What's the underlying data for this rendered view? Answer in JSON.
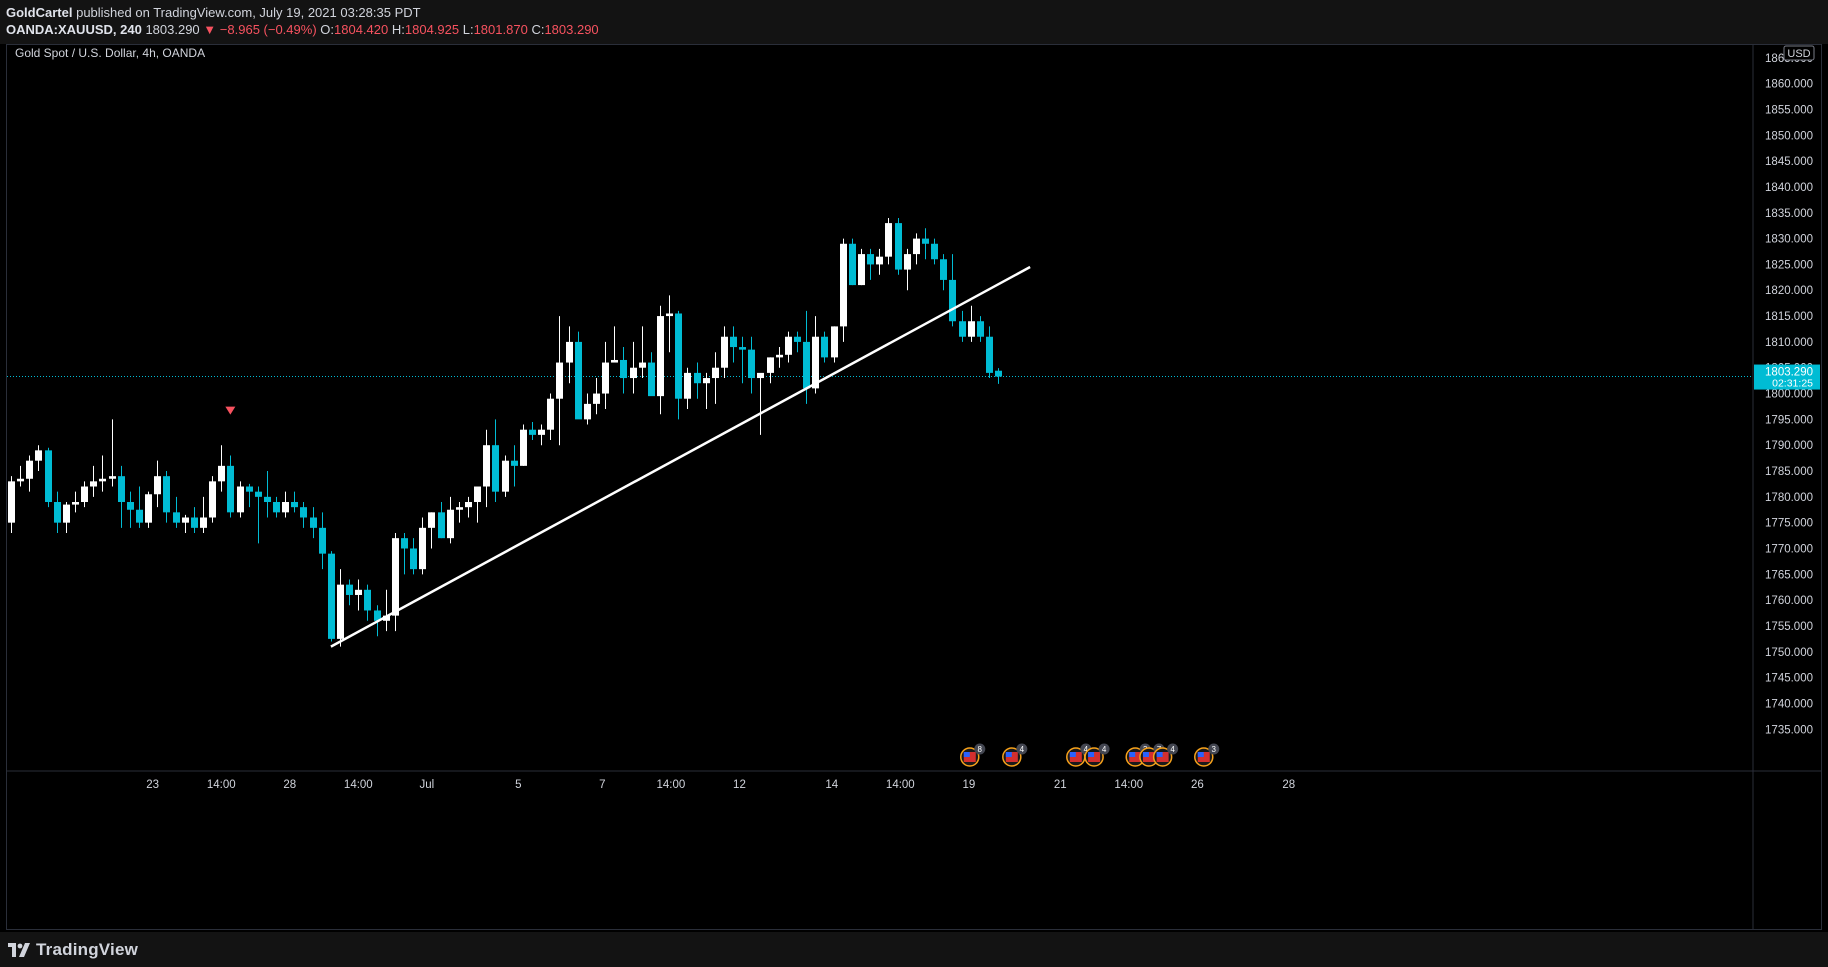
{
  "header": {
    "author": "GoldCartel",
    "published_text": "published on TradingView.com, July 19, 2021 03:28:35 PDT",
    "symbol": "OANDA:XAUUSD, 240",
    "last": "1803.290",
    "change": "−8.965 (−0.49%)",
    "o_label": "O:",
    "o_val": "1804.420",
    "h_label": "H:",
    "h_val": "1804.925",
    "l_label": "L:",
    "l_val": "1801.870",
    "c_label": "C:",
    "c_val": "1803.290"
  },
  "footer": {
    "logo_text": "TradingView"
  },
  "colors": {
    "up": "#ffffff",
    "down": "#00bcd4",
    "price_line": "#00bcd4",
    "text": "#d1d4dc",
    "grid_border": "#2a2e39",
    "marker": "#f7525f"
  },
  "chart_data": {
    "type": "candlestick",
    "title": "Gold Spot / U.S. Dollar, 4h, OANDA",
    "currency": "USD",
    "y_ticks": [
      1735,
      1740,
      1745,
      1750,
      1755,
      1760,
      1765,
      1770,
      1775,
      1780,
      1785,
      1790,
      1795,
      1800,
      1805,
      1810,
      1815,
      1820,
      1825,
      1830,
      1835,
      1840,
      1845,
      1850,
      1855,
      1860,
      1865
    ],
    "y_tick_labels": [
      "1735.000",
      "1740.000",
      "1745.000",
      "1750.000",
      "1755.000",
      "1760.000",
      "1765.000",
      "1770.000",
      "1775.000",
      "1780.000",
      "1785.000",
      "1790.000",
      "1795.000",
      "1800.000",
      "1805.000",
      "1810.000",
      "1815.000",
      "1820.000",
      "1825.000",
      "1830.000",
      "1835.000",
      "1840.000",
      "1845.000",
      "1850.000",
      "1855.000",
      "1860.000",
      "1865.000"
    ],
    "ylim": [
      1730.5,
      1867
    ],
    "x_ticks": [
      {
        "i": 15.5,
        "label": "23"
      },
      {
        "i": 23,
        "label": "14:00"
      },
      {
        "i": 30.5,
        "label": "28"
      },
      {
        "i": 38,
        "label": "14:00"
      },
      {
        "i": 45.5,
        "label": "Jul"
      },
      {
        "i": 55.5,
        "label": "5"
      },
      {
        "i": 64.7,
        "label": "7"
      },
      {
        "i": 72.2,
        "label": "14:00"
      },
      {
        "i": 79.7,
        "label": "12"
      },
      {
        "i": 89.8,
        "label": "14"
      },
      {
        "i": 97.3,
        "label": "14:00"
      },
      {
        "i": 104.8,
        "label": "19"
      },
      {
        "i": 114.8,
        "label": "21"
      },
      {
        "i": 122.3,
        "label": "14:00"
      },
      {
        "i": 129.8,
        "label": "26"
      },
      {
        "i": 139.8,
        "label": "28"
      }
    ],
    "candles": [
      [
        1775,
        1784,
        1773,
        1783
      ],
      [
        1783,
        1786,
        1782,
        1783.5
      ],
      [
        1783.5,
        1788,
        1781,
        1787
      ],
      [
        1787,
        1790,
        1785,
        1789
      ],
      [
        1789,
        1789.5,
        1778,
        1779
      ],
      [
        1779,
        1781,
        1773,
        1775
      ],
      [
        1775,
        1779,
        1773,
        1778.5
      ],
      [
        1778.5,
        1781,
        1777,
        1779
      ],
      [
        1779,
        1783,
        1778,
        1782
      ],
      [
        1782,
        1786,
        1780,
        1783
      ],
      [
        1783,
        1788,
        1781,
        1783.5
      ],
      [
        1783.5,
        1795,
        1782,
        1784
      ],
      [
        1784,
        1786,
        1774,
        1779
      ],
      [
        1779,
        1781,
        1774,
        1777.5
      ],
      [
        1777.5,
        1782,
        1774,
        1775
      ],
      [
        1775,
        1781,
        1774,
        1780.5
      ],
      [
        1780.5,
        1787,
        1778,
        1784
      ],
      [
        1784,
        1785,
        1775,
        1777
      ],
      [
        1777,
        1780,
        1774,
        1775
      ],
      [
        1775,
        1776.5,
        1773,
        1776
      ],
      [
        1776,
        1778,
        1773,
        1774
      ],
      [
        1774,
        1780,
        1773,
        1776
      ],
      [
        1776,
        1784,
        1775,
        1783
      ],
      [
        1783,
        1790,
        1781,
        1786
      ],
      [
        1786,
        1788,
        1776,
        1777
      ],
      [
        1777,
        1783,
        1776,
        1782
      ],
      [
        1782,
        1782.5,
        1778,
        1781
      ],
      [
        1781,
        1782,
        1771,
        1780
      ],
      [
        1780,
        1785,
        1776,
        1779
      ],
      [
        1779,
        1780,
        1776,
        1777
      ],
      [
        1777,
        1781,
        1776,
        1779
      ],
      [
        1779,
        1781,
        1777,
        1778
      ],
      [
        1778,
        1779,
        1774,
        1776
      ],
      [
        1776,
        1778,
        1772,
        1774
      ],
      [
        1774,
        1777,
        1766,
        1769
      ],
      [
        1769,
        1769.5,
        1752,
        1752.5
      ],
      [
        1752.5,
        1766,
        1751,
        1763
      ],
      [
        1763,
        1764,
        1759,
        1761
      ],
      [
        1761,
        1764,
        1758,
        1762
      ],
      [
        1762,
        1763,
        1756,
        1758
      ],
      [
        1758,
        1759,
        1753,
        1756
      ],
      [
        1756,
        1762,
        1754,
        1757
      ],
      [
        1757,
        1773,
        1754,
        1772
      ],
      [
        1772,
        1773,
        1765,
        1770
      ],
      [
        1770,
        1772,
        1765,
        1766
      ],
      [
        1766,
        1776,
        1765,
        1774
      ],
      [
        1774,
        1777,
        1770,
        1777
      ],
      [
        1777,
        1779,
        1772,
        1772
      ],
      [
        1772,
        1780,
        1771,
        1777.5
      ],
      [
        1777.5,
        1779,
        1775,
        1778
      ],
      [
        1778,
        1780,
        1776,
        1779
      ],
      [
        1779,
        1781,
        1775,
        1782
      ],
      [
        1782,
        1793,
        1778,
        1790
      ],
      [
        1790,
        1795,
        1779,
        1781
      ],
      [
        1781,
        1788,
        1780,
        1787
      ],
      [
        1787,
        1790,
        1782,
        1786
      ],
      [
        1786,
        1794,
        1786,
        1793
      ],
      [
        1793,
        1794.5,
        1791,
        1792
      ],
      [
        1792,
        1794,
        1790,
        1793
      ],
      [
        1793,
        1800,
        1791,
        1799
      ],
      [
        1799,
        1815,
        1790,
        1806
      ],
      [
        1806,
        1813,
        1802,
        1810
      ],
      [
        1810,
        1812,
        1796,
        1795
      ],
      [
        1795,
        1800,
        1794,
        1798
      ],
      [
        1798,
        1803,
        1796,
        1800
      ],
      [
        1800,
        1810,
        1797,
        1806
      ],
      [
        1806,
        1813,
        1806,
        1806.5
      ],
      [
        1806.5,
        1809,
        1800,
        1803
      ],
      [
        1803,
        1810,
        1800,
        1805
      ],
      [
        1805,
        1813,
        1803,
        1806
      ],
      [
        1806,
        1808,
        1800,
        1799.5
      ],
      [
        1799.5,
        1817,
        1796,
        1815
      ],
      [
        1815,
        1819,
        1808,
        1815.5
      ],
      [
        1815.5,
        1816,
        1795,
        1799
      ],
      [
        1799,
        1805,
        1797,
        1804
      ],
      [
        1804,
        1806,
        1799,
        1802
      ],
      [
        1802,
        1804,
        1797,
        1803
      ],
      [
        1803,
        1808,
        1798,
        1805
      ],
      [
        1805,
        1813,
        1803,
        1811
      ],
      [
        1811,
        1813,
        1806,
        1809
      ],
      [
        1809,
        1811,
        1802,
        1808.5
      ],
      [
        1808.5,
        1811,
        1800,
        1803
      ],
      [
        1803,
        1803.5,
        1792,
        1804
      ],
      [
        1804,
        1807,
        1802,
        1807
      ],
      [
        1807,
        1809,
        1805,
        1807.5
      ],
      [
        1807.5,
        1812,
        1806,
        1811
      ],
      [
        1811,
        1812,
        1808,
        1810
      ],
      [
        1810,
        1816,
        1798,
        1801
      ],
      [
        1801,
        1815,
        1800,
        1811
      ],
      [
        1811,
        1812,
        1806,
        1807
      ],
      [
        1807,
        1813,
        1806,
        1813
      ],
      [
        1813,
        1830,
        1810,
        1829
      ],
      [
        1829,
        1830,
        1821,
        1821
      ],
      [
        1821,
        1828,
        1821,
        1827
      ],
      [
        1827,
        1828,
        1822,
        1825
      ],
      [
        1825,
        1828,
        1823,
        1826.5
      ],
      [
        1826.5,
        1834,
        1825,
        1833
      ],
      [
        1833,
        1834,
        1823,
        1824
      ],
      [
        1824,
        1828,
        1820,
        1827
      ],
      [
        1827,
        1831,
        1825,
        1830
      ],
      [
        1830,
        1832,
        1826,
        1829
      ],
      [
        1829,
        1830,
        1825,
        1826
      ],
      [
        1826,
        1827,
        1820,
        1822
      ],
      [
        1822,
        1827,
        1813,
        1814
      ],
      [
        1814,
        1816,
        1810,
        1811
      ],
      [
        1811,
        1817,
        1810,
        1814
      ],
      [
        1814,
        1815,
        1810,
        1811
      ],
      [
        1811,
        1813,
        1803,
        1804
      ],
      [
        1804.42,
        1804.925,
        1801.87,
        1803.29
      ]
    ],
    "current_price": 1803.29,
    "price_label": "1803.290",
    "countdown": "02:31:25",
    "trendline": [
      {
        "i": 35,
        "price": 1751
      },
      {
        "i": 111.5,
        "price": 1824.5
      }
    ],
    "marker": {
      "i": 24,
      "price": 1796.5
    },
    "events": [
      {
        "i": 104.9,
        "count": "8"
      },
      {
        "i": 109.5,
        "count": "4"
      },
      {
        "i": 116.5,
        "count": "4"
      },
      {
        "i": 118.5,
        "count": "4"
      },
      {
        "i": 123,
        "count": "3"
      },
      {
        "i": 124.5,
        "count": "7"
      },
      {
        "i": 126,
        "count": "4"
      },
      {
        "i": 130.5,
        "count": "3"
      }
    ]
  }
}
